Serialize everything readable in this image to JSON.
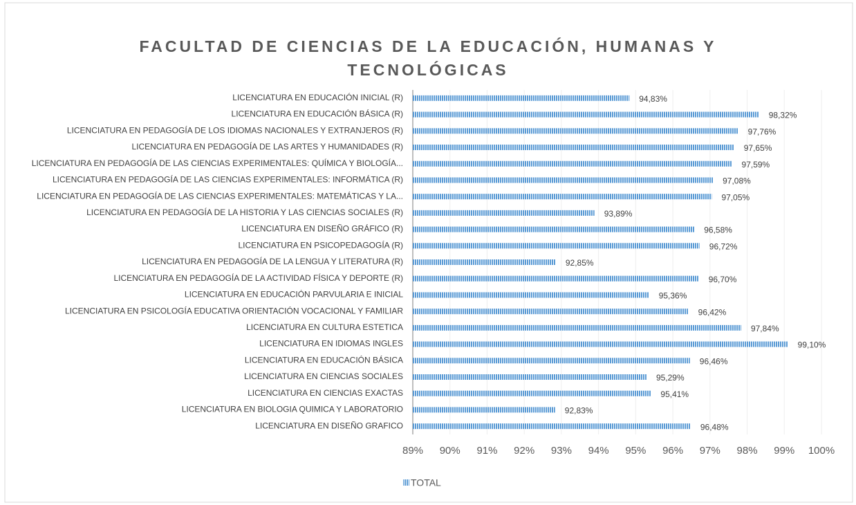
{
  "chart_data": {
    "type": "bar",
    "orientation": "horizontal",
    "title": "FACULTAD DE CIENCIAS DE LA EDUCACIÓN, HUMANAS Y TECNOLÓGICAS",
    "categories": [
      "LICENCIATURA EN EDUCACIÓN INICIAL (R)",
      "LICENCIATURA EN EDUCACIÓN BÁSICA (R)",
      "LICENCIATURA EN PEDAGOGÍA DE LOS IDIOMAS NACIONALES Y EXTRANJEROS (R)",
      "LICENCIATURA EN PEDAGOGÍA DE LAS ARTES Y HUMANIDADES (R)",
      "LICENCIATURA EN PEDAGOGÍA DE LAS CIENCIAS EXPERIMENTALES: QUÍMICA Y BIOLOGÍA...",
      "LICENCIATURA EN PEDAGOGÍA DE LAS CIENCIAS EXPERIMENTALES: INFORMÁTICA (R)",
      "LICENCIATURA EN PEDAGOGÍA DE LAS CIENCIAS EXPERIMENTALES: MATEMÁTICAS Y LA...",
      "LICENCIATURA EN PEDAGOGÍA DE LA HISTORIA Y LAS CIENCIAS SOCIALES (R)",
      "LICENCIATURA EN DISEÑO GRÁFICO (R)",
      "LICENCIATURA EN PSICOPEDAGOGÍA (R)",
      "LICENCIATURA EN PEDAGOGÍA DE LA LENGUA Y LITERATURA (R)",
      "LICENCIATURA EN PEDAGOGÍA DE LA ACTIVIDAD FÍSICA Y DEPORTE (R)",
      "LICENCIATURA EN EDUCACIÓN PARVULARIA E INICIAL",
      "LICENCIATURA EN PSICOLOGÍA EDUCATIVA ORIENTACIÓN VOCACIONAL Y FAMILIAR",
      "LICENCIATURA EN CULTURA ESTETICA",
      "LICENCIATURA EN IDIOMAS INGLES",
      "LICENCIATURA EN EDUCACIÓN BÁSICA",
      "LICENCIATURA EN CIENCIAS SOCIALES",
      "LICENCIATURA EN CIENCIAS EXACTAS",
      "LICENCIATURA EN BIOLOGIA QUIMICA Y LABORATORIO",
      "LICENCIATURA EN DISEÑO GRAFICO"
    ],
    "series": [
      {
        "name": "TOTAL",
        "color": "#5b9bd5",
        "values": [
          94.83,
          98.32,
          97.76,
          97.65,
          97.59,
          97.08,
          97.05,
          93.89,
          96.58,
          96.72,
          92.85,
          96.7,
          95.36,
          96.42,
          97.84,
          99.1,
          96.46,
          95.29,
          95.41,
          92.83,
          96.48
        ],
        "value_labels": [
          "94,83%",
          "98,32%",
          "97,76%",
          "97,65%",
          "97,59%",
          "97,08%",
          "97,05%",
          "93,89%",
          "96,58%",
          "96,72%",
          "92,85%",
          "96,70%",
          "95,36%",
          "96,42%",
          "97,84%",
          "99,10%",
          "96,46%",
          "95,29%",
          "95,41%",
          "92,83%",
          "96,48%"
        ]
      }
    ],
    "xlim": [
      89,
      100
    ],
    "xticks": [
      {
        "value": 89,
        "label": "89%"
      },
      {
        "value": 90,
        "label": "90%"
      },
      {
        "value": 91,
        "label": "91%"
      },
      {
        "value": 92,
        "label": "92%"
      },
      {
        "value": 93,
        "label": "93%"
      },
      {
        "value": 94,
        "label": "94%"
      },
      {
        "value": 95,
        "label": "95%"
      },
      {
        "value": 96,
        "label": "96%"
      },
      {
        "value": 97,
        "label": "97%"
      },
      {
        "value": 98,
        "label": "98%"
      },
      {
        "value": 99,
        "label": "99%"
      },
      {
        "value": 100,
        "label": "100%"
      }
    ],
    "grid": true,
    "legend": "bottom"
  }
}
